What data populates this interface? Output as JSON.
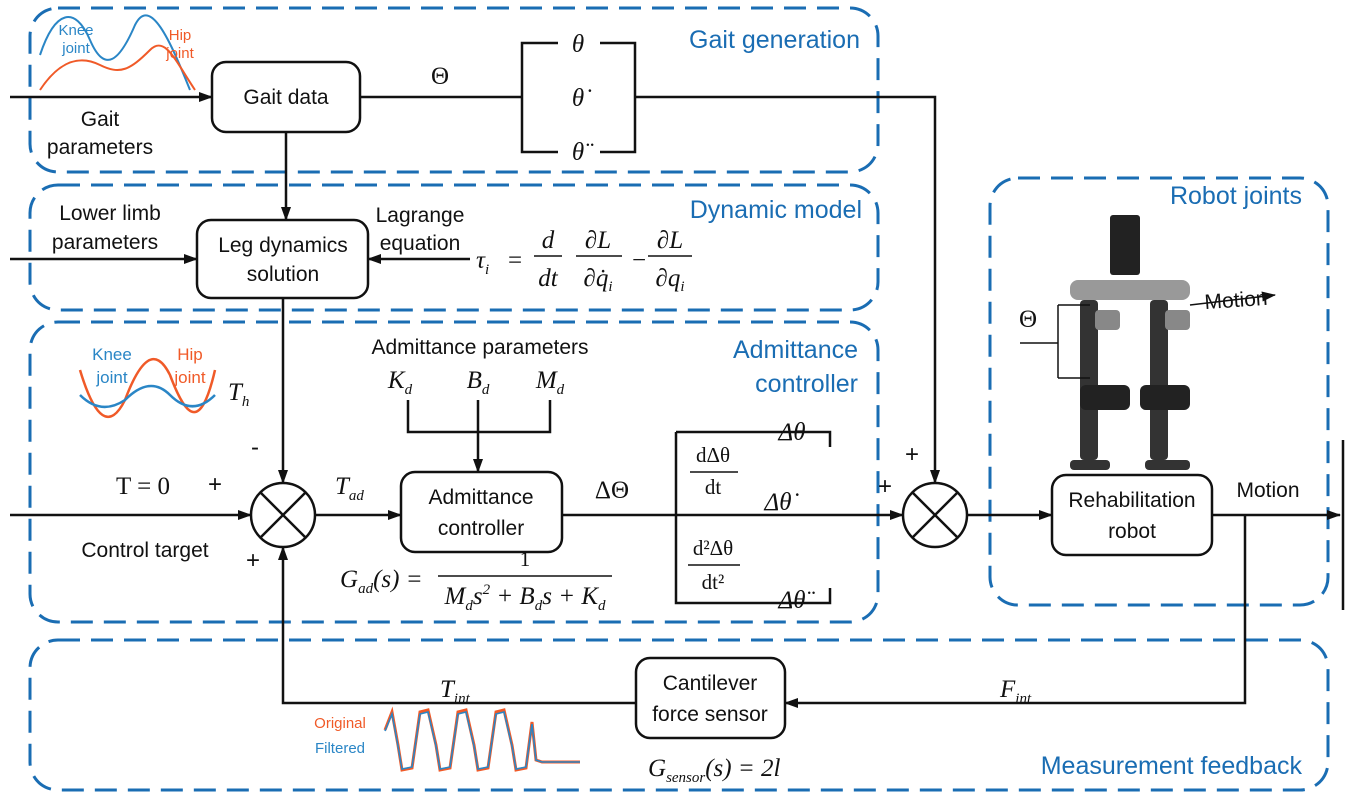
{
  "groups": {
    "gait_generation": "Gait generation",
    "dynamic_model": "Dynamic model",
    "admittance_controller": [
      "Admittance",
      "controller"
    ],
    "robot_joints": "Robot joints",
    "measurement_feedback": "Measurement feedback"
  },
  "blocks": {
    "gait_data": "Gait data",
    "leg_dynamics": [
      "Leg dynamics",
      "solution"
    ],
    "admittance": [
      "Admittance",
      "controller"
    ],
    "robot": [
      "Rehabilitation",
      "robot"
    ],
    "sensor": [
      "Cantilever",
      "force sensor"
    ]
  },
  "inputs": {
    "gait_parameters": [
      "Gait",
      "parameters"
    ],
    "lower_limb": [
      "Lower limb",
      "parameters"
    ],
    "lagrange": [
      "Lagrange",
      "equation"
    ],
    "control_target": "Control target",
    "target": "T = 0"
  },
  "signals": {
    "theta_vec": "Θ",
    "theta": "θ",
    "theta_dot": "θ̇",
    "theta_ddot": "θ̈",
    "t_ad": [
      "T",
      "ad"
    ],
    "delta_theta_vec": "ΔΘ",
    "delta_theta": "Δθ",
    "delta_theta_dot": "Δθ̇",
    "delta_theta_ddot": "Δθ̈",
    "t_int": [
      "T",
      "int"
    ],
    "f_int": [
      "F",
      "int"
    ],
    "t_h": [
      "T",
      "h"
    ],
    "motion": "Motion"
  },
  "signs": {
    "minus": "-",
    "plus_target": "+",
    "plus_feedback": "+",
    "plus_gait": "+",
    "plus_control": "+"
  },
  "admittance_parameters": {
    "title": "Admittance parameters",
    "k": [
      "K",
      "d"
    ],
    "b": [
      "B",
      "d"
    ],
    "m": [
      "M",
      "d"
    ]
  },
  "derivatives": {
    "first": [
      "dΔθ",
      "dt"
    ],
    "second": [
      "d²Δθ",
      "dt²"
    ]
  },
  "formulas": {
    "lagrange": [
      "τ",
      "i",
      "=",
      "d",
      "dt",
      "∂L",
      "∂q̇",
      "i",
      "−",
      "∂L",
      "∂q",
      "i"
    ],
    "admittance": [
      "G",
      "ad",
      "(s) =",
      "1",
      "M",
      "d",
      "s",
      "2",
      " + B",
      "d",
      "s + K",
      "d"
    ],
    "sensor": [
      "G",
      "sensor",
      "(s) = 2l"
    ]
  },
  "plots": {
    "gait": {
      "knee": [
        "Knee",
        "joint"
      ],
      "hip": [
        "Hip",
        "joint"
      ]
    },
    "torque": {
      "knee": [
        "Knee",
        "joint"
      ],
      "hip": [
        "Hip",
        "joint"
      ]
    },
    "force": {
      "original": "Original",
      "filtered": "Filtered"
    }
  },
  "robot_joints": {
    "theta": "Θ",
    "motion": "Motion"
  }
}
